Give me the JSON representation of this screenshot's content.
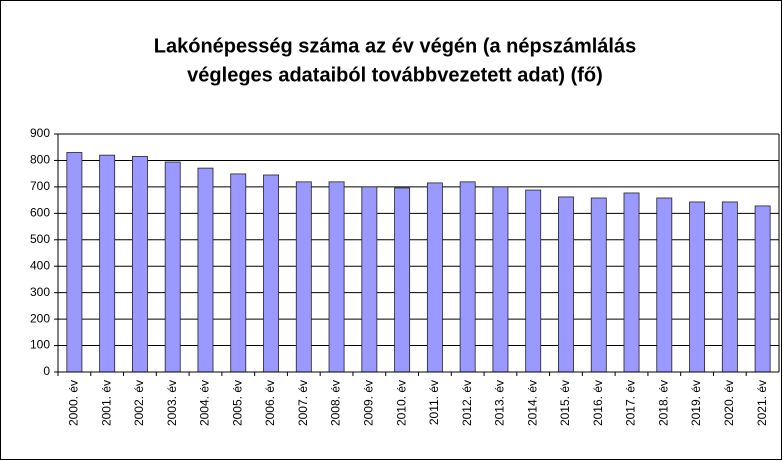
{
  "chart_data": {
    "type": "bar",
    "title": [
      "Lakónépesség száma az év végén (a népszámlálás",
      "végleges adataiból továbbvezetett adat) (fő)"
    ],
    "categories": [
      "2000. év",
      "2001. év",
      "2002. év",
      "2003. év",
      "2004. év",
      "2005. év",
      "2006. év",
      "2007. év",
      "2008. év",
      "2009. év",
      "2010. év",
      "2011. év",
      "2012. év",
      "2013. év",
      "2014. év",
      "2015. év",
      "2016. év",
      "2017. év",
      "2018. év",
      "2019. év",
      "2020. év",
      "2021. év"
    ],
    "values": [
      830,
      820,
      815,
      794,
      771,
      749,
      745,
      719,
      719,
      700,
      696,
      715,
      719,
      700,
      688,
      662,
      658,
      677,
      658,
      643,
      643,
      628
    ],
    "color": "#9999ff",
    "ylim": [
      0,
      900
    ],
    "yticks": [
      0,
      100,
      200,
      300,
      400,
      500,
      600,
      700,
      800,
      900
    ],
    "grid": true
  }
}
